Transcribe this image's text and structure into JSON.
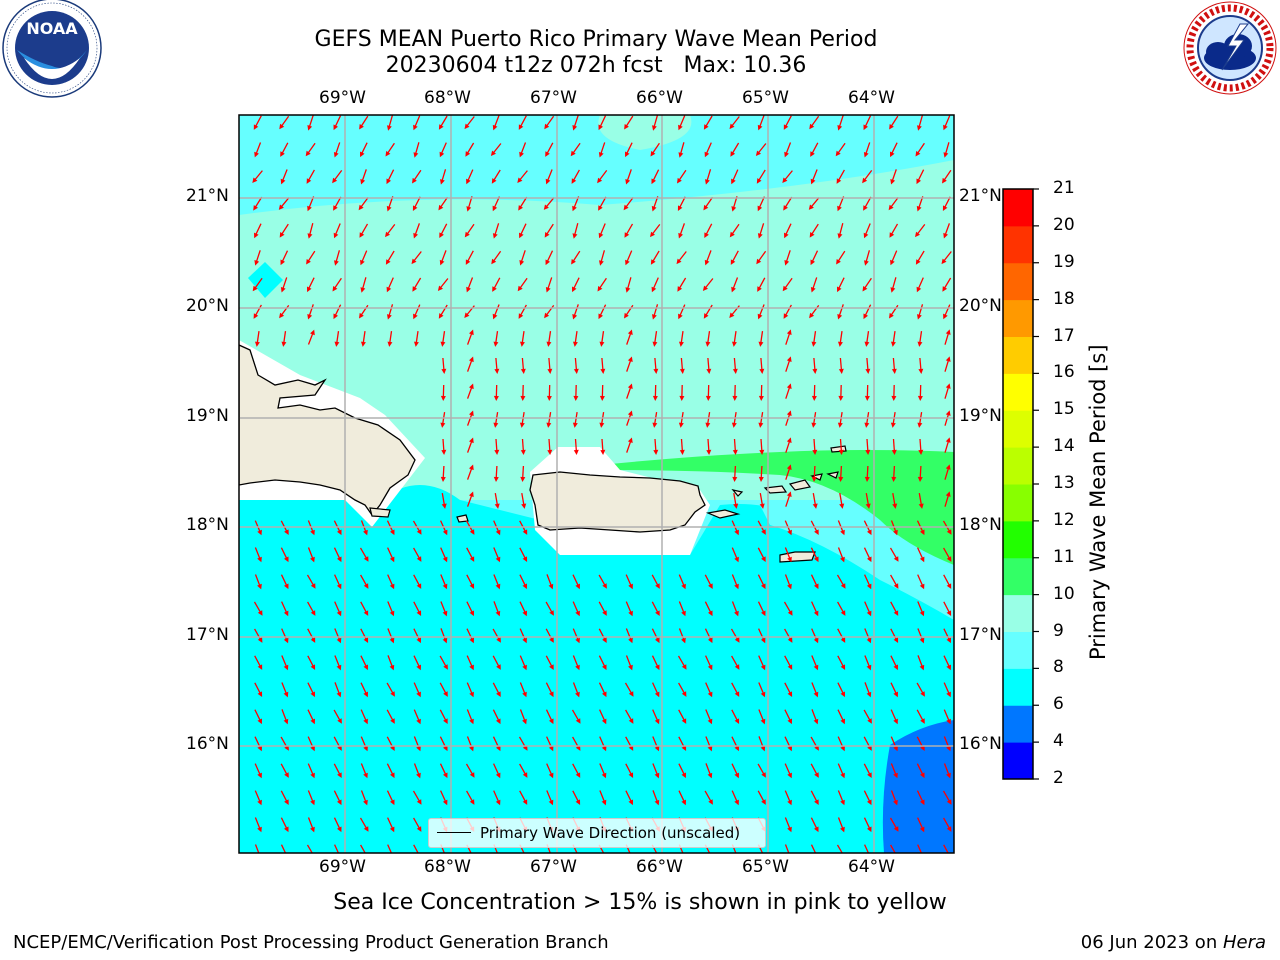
{
  "header": {
    "title": "GEFS MEAN Puerto Rico Primary Wave Mean Period",
    "subtitle": "20230604 t12z 072h fcst   Max: 10.36"
  },
  "logos": {
    "left": {
      "name": "NOAA",
      "ring_text": "NATIONAL OCEANIC AND ATMOSPHERIC ADMINISTRATION • U.S. DEPARTMENT OF COMMERCE"
    },
    "right": {
      "name": "National Weather Service",
      "ring_text": "NATIONAL WEATHER SERVICE"
    }
  },
  "map": {
    "lon_labels": [
      "69°W",
      "68°W",
      "67°W",
      "66°W",
      "65°W",
      "64°W"
    ],
    "lat_labels": [
      "21°N",
      "20°N",
      "19°N",
      "18°N",
      "17°N",
      "16°N"
    ],
    "legend_label": "Primary Wave Direction (unscaled)",
    "arrow_color": "#ff0000",
    "land_color": "#f0ecdc"
  },
  "colorbar": {
    "label": "Primary Wave Mean Period [s]",
    "ticks": [
      "2",
      "4",
      "6",
      "8",
      "9",
      "10",
      "11",
      "12",
      "13",
      "14",
      "15",
      "16",
      "17",
      "18",
      "19",
      "20",
      "21"
    ],
    "colors": [
      "#0000ff",
      "#0077ff",
      "#00ffff",
      "#66ffff",
      "#99ffe6",
      "#33ff66",
      "#22ff00",
      "#88ff00",
      "#bbff00",
      "#ddff00",
      "#ffff00",
      "#ffcc00",
      "#ff9900",
      "#ff6600",
      "#ff3300",
      "#ff0000"
    ]
  },
  "note": "Sea Ice Concentration > 15% is shown in pink to yellow",
  "footer": {
    "left": "NCEP/EMC/Verification Post Processing Product Generation Branch",
    "right_date": "06 Jun 2023 on ",
    "right_host": "Hera"
  }
}
